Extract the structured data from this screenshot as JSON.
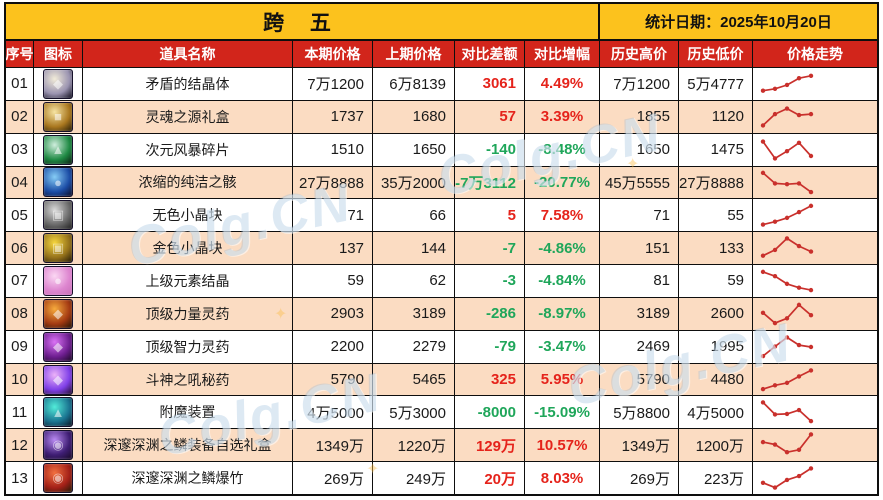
{
  "colors": {
    "banner_yellow": "#fcc21d",
    "header_red": "#d2251b",
    "stripe_peach": "#fbdcc2",
    "up_red": "#e5231b",
    "down_green": "#1fa65a",
    "trend_red": "#c9302c",
    "grid_black": "#0e0e0e",
    "body_text": "#1a1a1a"
  },
  "watermark": {
    "text": "Colg.CN",
    "star": "✦"
  },
  "chart_data": {
    "type": "table",
    "title": "跨 五",
    "stat_date": "统计日期：2025年10月20日",
    "columns": [
      "序号",
      "图标",
      "道具名称",
      "本期价格",
      "上期价格",
      "对比差额",
      "对比增幅",
      "历史高价",
      "历史低价",
      "价格走势"
    ],
    "trend_note": "sparkline levels 0-100, higher = higher price",
    "rows": [
      {
        "num": "01",
        "name": "矛盾的结晶体",
        "cur": "7万1200",
        "prev": "6万8139",
        "diff": "3061",
        "pct": "4.49%",
        "dir": "up",
        "high": "7万1200",
        "low": "5万4777",
        "trend": [
          22,
          30,
          46,
          74,
          84
        ],
        "icon": {
          "name": "white-crystal-icon",
          "glyph": "◆",
          "c1": "#f2ecd9",
          "c2": "#9a93b0",
          "bg": "#161426"
        }
      },
      {
        "num": "02",
        "name": "灵魂之源礼盒",
        "cur": "1737",
        "prev": "1680",
        "diff": "57",
        "pct": "3.39%",
        "dir": "up",
        "high": "1855",
        "low": "1120",
        "trend": [
          15,
          62,
          85,
          58,
          62
        ],
        "icon": {
          "name": "gold-gift-box-icon",
          "glyph": "■",
          "c1": "#f6e4a2",
          "c2": "#a9771f",
          "bg": "#2e2208"
        }
      },
      {
        "num": "03",
        "name": "次元风暴碎片",
        "cur": "1510",
        "prev": "1650",
        "diff": "-140",
        "pct": "-8.48%",
        "dir": "down",
        "high": "1650",
        "low": "1475",
        "trend": [
          85,
          15,
          45,
          80,
          25
        ],
        "icon": {
          "name": "green-shard-icon",
          "glyph": "▲",
          "c1": "#cfeedd",
          "c2": "#1f8a44",
          "bg": "#0a2413"
        }
      },
      {
        "num": "04",
        "name": "浓缩的纯洁之骸",
        "cur": "27万8888",
        "prev": "35万2000",
        "diff": "-7万3112",
        "pct": "-20.77%",
        "dir": "down",
        "high": "45万5555",
        "low": "27万8888",
        "trend": [
          88,
          44,
          41,
          44,
          8
        ],
        "icon": {
          "name": "blue-orb-icon",
          "glyph": "●",
          "c1": "#86cdf6",
          "c2": "#1c4da6",
          "bg": "#0a1030"
        }
      },
      {
        "num": "05",
        "name": "无色小晶块",
        "cur": "71",
        "prev": "66",
        "diff": "5",
        "pct": "7.58%",
        "dir": "up",
        "high": "71",
        "low": "55",
        "trend": [
          10,
          22,
          38,
          62,
          88
        ],
        "icon": {
          "name": "gray-cube-icon",
          "glyph": "▣",
          "c1": "#d8d8d8",
          "c2": "#6a6a6a",
          "bg": "#232323"
        }
      },
      {
        "num": "06",
        "name": "金色小晶块",
        "cur": "137",
        "prev": "144",
        "diff": "-7",
        "pct": "-4.86%",
        "dir": "down",
        "high": "151",
        "low": "133",
        "trend": [
          18,
          42,
          90,
          58,
          35
        ],
        "icon": {
          "name": "gold-cube-icon",
          "glyph": "▣",
          "c1": "#f6d63e",
          "c2": "#94711a",
          "bg": "#2a1f06"
        }
      },
      {
        "num": "07",
        "name": "上级元素结晶",
        "cur": "59",
        "prev": "62",
        "diff": "-3",
        "pct": "-4.84%",
        "dir": "down",
        "high": "81",
        "low": "59",
        "trend": [
          88,
          70,
          38,
          22,
          12
        ],
        "icon": {
          "name": "pink-crystal-icon",
          "glyph": "●",
          "c1": "#fbd7f3",
          "c2": "#dd85cf",
          "bg": "#c970b8"
        }
      },
      {
        "num": "08",
        "name": "顶级力量灵药",
        "cur": "2903",
        "prev": "3189",
        "diff": "-286",
        "pct": "-8.97%",
        "dir": "down",
        "high": "3189",
        "low": "2600",
        "trend": [
          55,
          12,
          32,
          88,
          45
        ],
        "icon": {
          "name": "orange-potion-icon",
          "glyph": "◆",
          "c1": "#f7ab3d",
          "c2": "#a43a12",
          "bg": "#2a1505"
        }
      },
      {
        "num": "09",
        "name": "顶级智力灵药",
        "cur": "2200",
        "prev": "2279",
        "diff": "-79",
        "pct": "-3.47%",
        "dir": "down",
        "high": "2469",
        "low": "1995",
        "trend": [
          12,
          52,
          90,
          58,
          50
        ],
        "icon": {
          "name": "purple-potion-icon",
          "glyph": "◆",
          "c1": "#da72f5",
          "c2": "#6e1e90",
          "bg": "#1f0a2a"
        }
      },
      {
        "num": "10",
        "name": "斗神之吼秘药",
        "cur": "5790",
        "prev": "5465",
        "diff": "325",
        "pct": "5.95%",
        "dir": "up",
        "high": "5790",
        "low": "4480",
        "trend": [
          12,
          28,
          38,
          65,
          90
        ],
        "icon": {
          "name": "violet-elixir-icon",
          "glyph": "◆",
          "c1": "#ecb2f8",
          "c2": "#8040e8",
          "bg": "#2a0f3a"
        }
      },
      {
        "num": "11",
        "name": "附魔装置",
        "cur": "4万5000",
        "prev": "5万3000",
        "diff": "-8000",
        "pct": "-15.09%",
        "dir": "down",
        "high": "5万8800",
        "low": "4万5000",
        "trend": [
          90,
          40,
          42,
          58,
          12
        ],
        "icon": {
          "name": "cyan-device-icon",
          "glyph": "▲",
          "c1": "#52ecd9",
          "c2": "#1a7390",
          "bg": "#0a1a2a"
        }
      },
      {
        "num": "12",
        "name": "深邃深渊之鳞装备自选礼盒",
        "cur": "1349万",
        "prev": "1220万",
        "diff": "129万",
        "pct": "10.57%",
        "dir": "up",
        "high": "1349万",
        "low": "1200万",
        "trend": [
          62,
          52,
          20,
          30,
          94
        ],
        "icon": {
          "name": "purple-box-coin-icon",
          "glyph": "◉",
          "c1": "#b98af2",
          "c2": "#3f1e74",
          "bg": "#1a0a2a"
        }
      },
      {
        "num": "13",
        "name": "深邃深渊之鳞爆竹",
        "cur": "269万",
        "prev": "249万",
        "diff": "20万",
        "pct": "8.03%",
        "dir": "up",
        "high": "269万",
        "low": "223万",
        "trend": [
          30,
          10,
          42,
          58,
          90
        ],
        "icon": {
          "name": "red-firecracker-icon",
          "glyph": "◉",
          "c1": "#f2703f",
          "c2": "#a32018",
          "bg": "#2a1a06"
        }
      }
    ]
  }
}
